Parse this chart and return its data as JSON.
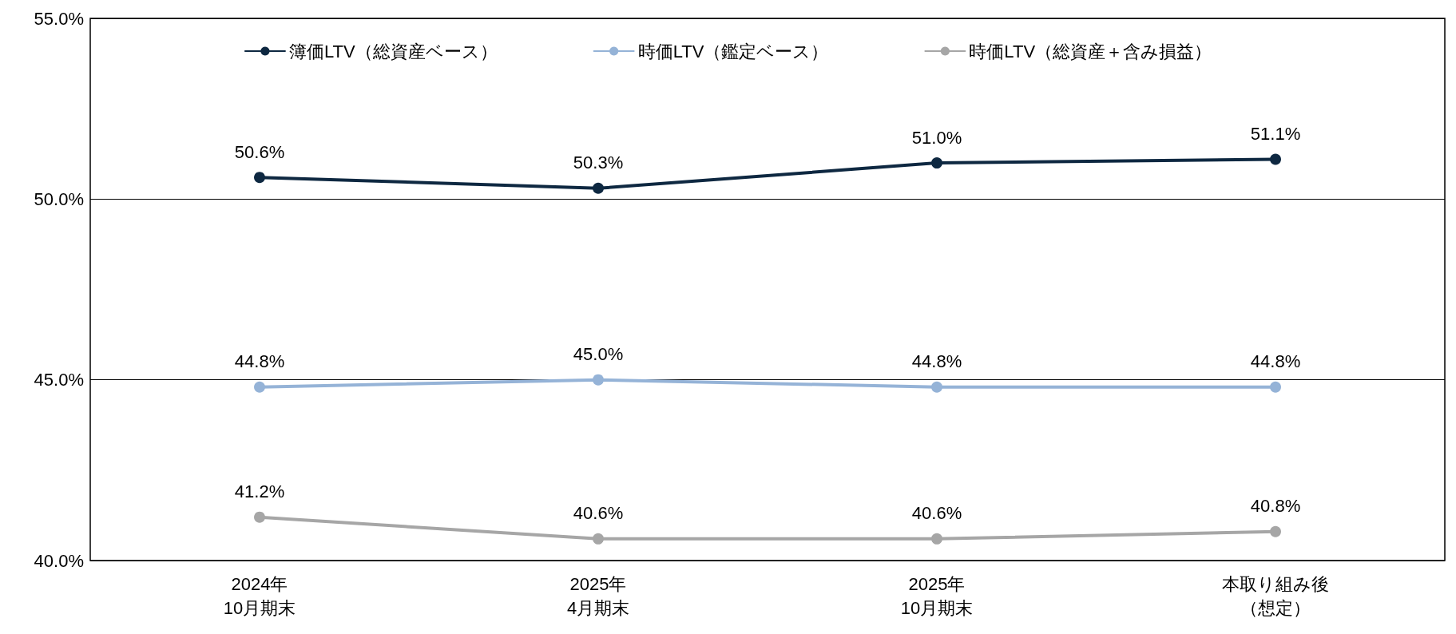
{
  "chart_data": {
    "type": "line",
    "categories": [
      "2024年\n10月期末",
      "2025年\n4月期末",
      "2025年\n10月期末",
      "本取り組み後（想定）"
    ],
    "series": [
      {
        "name": "簿価LTV（総資産ベース）",
        "color": "#0e2841",
        "values": [
          50.6,
          50.3,
          51.0,
          51.1
        ],
        "value_labels": [
          "50.6%",
          "50.3%",
          "51.0%",
          "51.1%"
        ]
      },
      {
        "name": "時価LTV（鑑定ベース）",
        "color": "#95b3d7",
        "values": [
          44.8,
          45.0,
          44.8,
          44.8
        ],
        "value_labels": [
          "44.8%",
          "45.0%",
          "44.8%",
          "44.8%"
        ]
      },
      {
        "name": "時価LTV（総資産＋含み損益）",
        "color": "#a6a6a6",
        "values": [
          41.2,
          40.6,
          40.6,
          40.8
        ],
        "value_labels": [
          "41.2%",
          "40.6%",
          "40.6%",
          "40.8%"
        ]
      }
    ],
    "ylim": [
      40,
      55
    ],
    "yticks": [
      {
        "value": 40,
        "label": "40.0%"
      },
      {
        "value": 45,
        "label": "45.0%"
      },
      {
        "value": 50,
        "label": "50.0%"
      },
      {
        "value": 55,
        "label": "55.0%"
      }
    ],
    "grid": "y",
    "legend": "top",
    "marker": "circle",
    "line_style": "solid"
  }
}
